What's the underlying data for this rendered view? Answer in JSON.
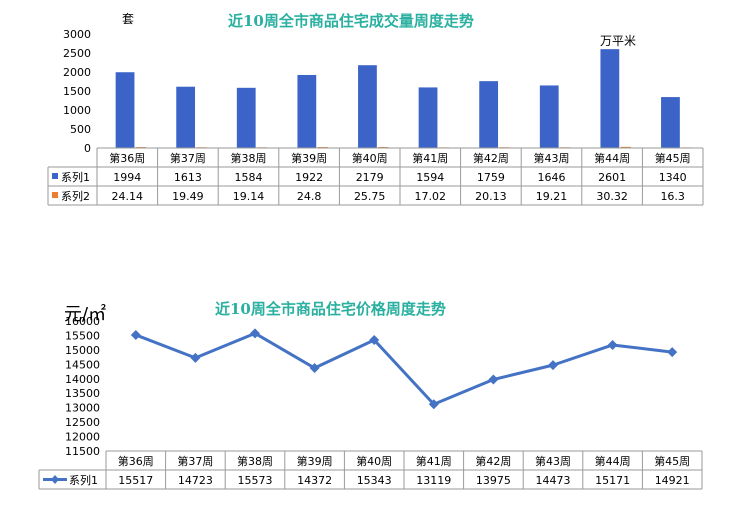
{
  "chart_data": [
    {
      "type": "bar",
      "title": "近10周全市商品住宅成交量周度走势",
      "y_unit_left": "套",
      "y_unit_right": "万平米",
      "categories": [
        "第36周",
        "第37周",
        "第38周",
        "第39周",
        "第40周",
        "第41周",
        "第42周",
        "第43周",
        "第44周",
        "第45周"
      ],
      "series": [
        {
          "name": "系列1",
          "values": [
            1994,
            1613,
            1584,
            1922,
            2179,
            1594,
            1759,
            1646,
            2601,
            1340
          ],
          "value_labels": [
            "1994",
            "1613",
            "1584",
            "1922",
            "2179",
            "1594",
            "1759",
            "1646",
            "2601",
            "1340"
          ],
          "color": "#3c64c8"
        },
        {
          "name": "系列2",
          "values": [
            24.14,
            19.49,
            19.14,
            24.8,
            25.75,
            17.02,
            20.13,
            19.21,
            30.32,
            16.3
          ],
          "value_labels": [
            "24.14",
            "19.49",
            "19.14",
            "24.8",
            "25.75",
            "17.02",
            "20.13",
            "19.21",
            "30.32",
            "16.3"
          ],
          "color": "#ed7d31"
        }
      ],
      "ylim": [
        0,
        3000
      ],
      "yticks": [
        "3000",
        "2500",
        "2000",
        "1500",
        "1000",
        "500",
        "0"
      ],
      "data_table": true
    },
    {
      "type": "line",
      "title": "近10周全市商品住宅价格周度走势",
      "y_unit": "元/㎡",
      "categories": [
        "第36周",
        "第37周",
        "第38周",
        "第39周",
        "第40周",
        "第41周",
        "第42周",
        "第43周",
        "第44周",
        "第45周"
      ],
      "series": [
        {
          "name": "系列1",
          "values": [
            15517,
            14723,
            15573,
            14372,
            15343,
            13119,
            13975,
            14473,
            15171,
            14921
          ],
          "value_labels": [
            "15517",
            "14723",
            "15573",
            "14372",
            "15343",
            "13119",
            "13975",
            "14473",
            "15171",
            "14921"
          ],
          "color": "#4472c4"
        }
      ],
      "ylim": [
        11500,
        16000
      ],
      "yticks": [
        "16000",
        "15500",
        "15000",
        "14500",
        "14000",
        "13500",
        "13000",
        "12500",
        "12000",
        "11500"
      ],
      "data_table": true
    }
  ]
}
